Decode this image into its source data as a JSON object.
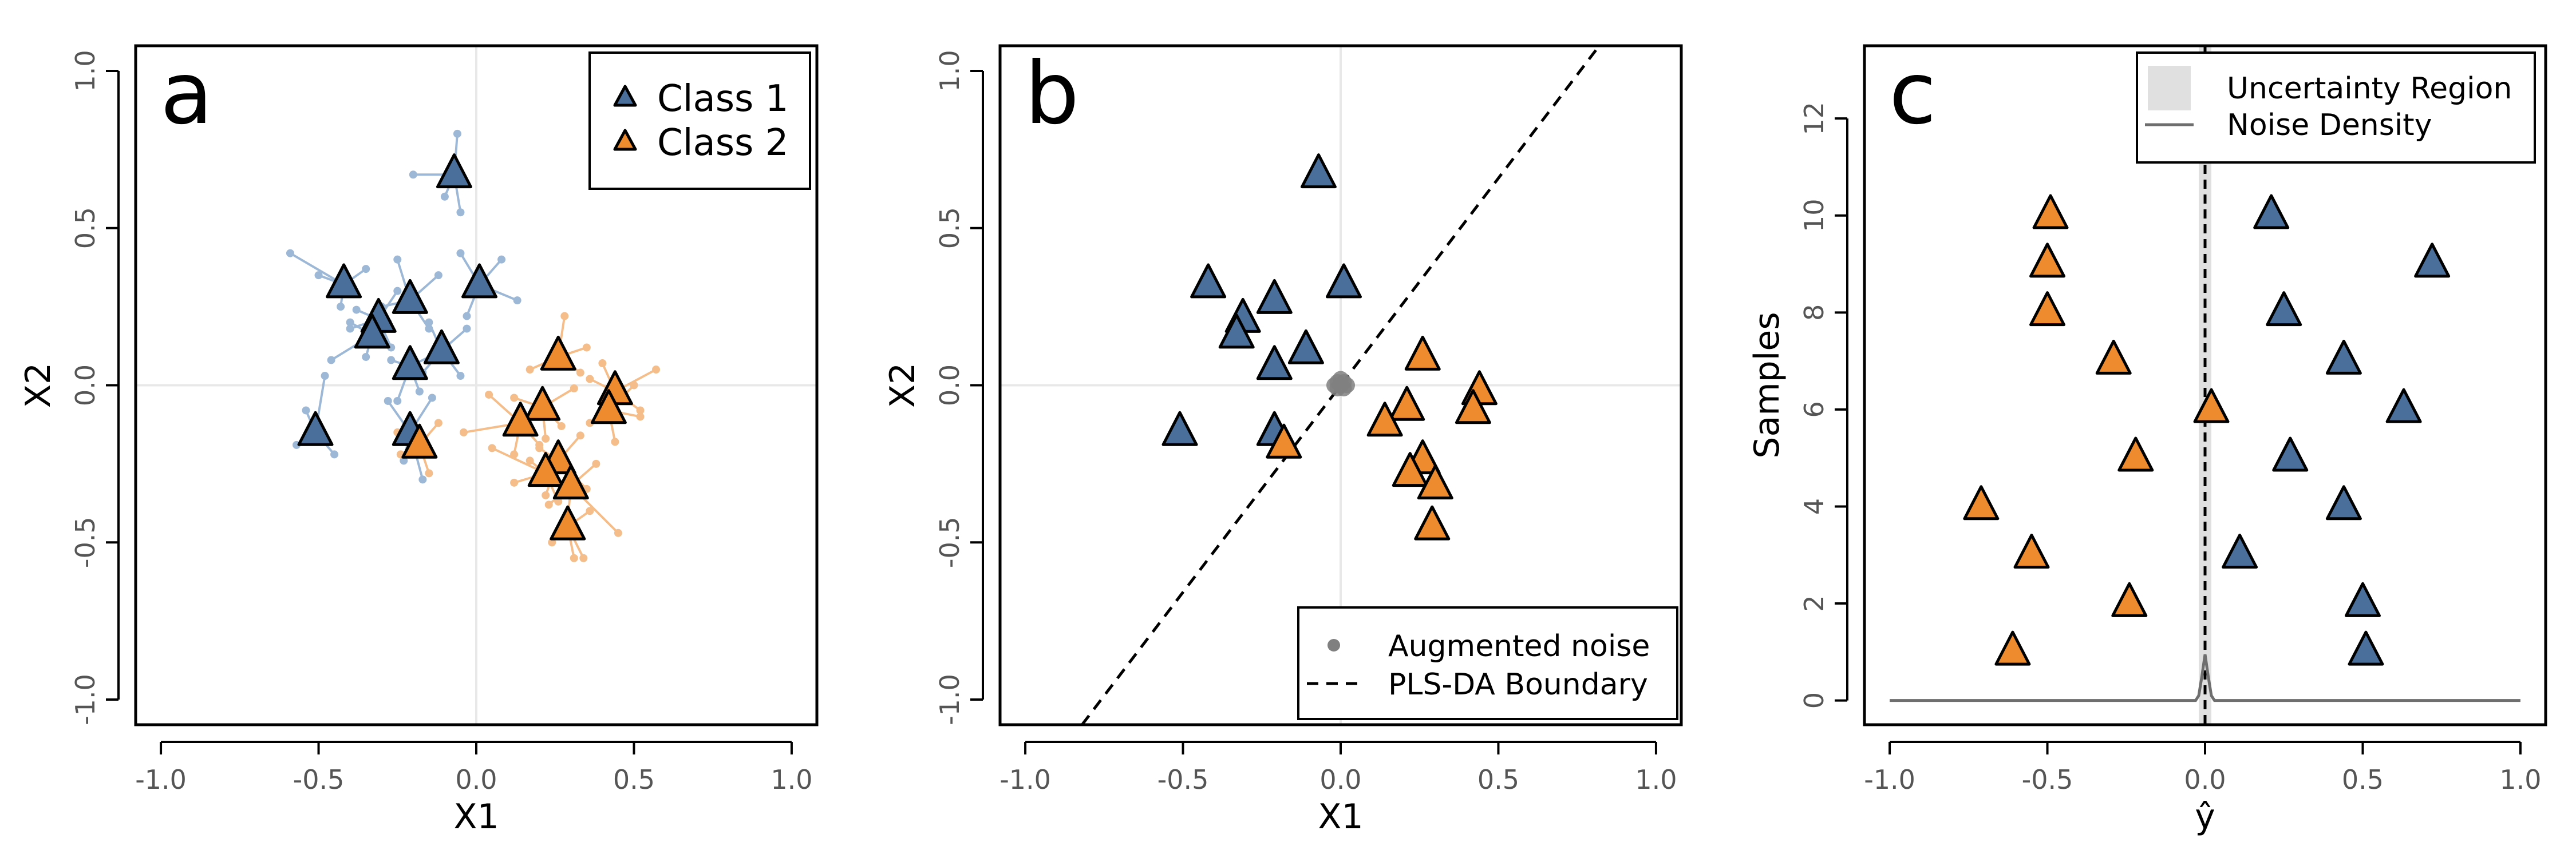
{
  "colors": {
    "class1": "#4a6f9b",
    "class1_light": "#9db8d6",
    "class2": "#ee8b2e",
    "class2_light": "#f4bd89",
    "noise": "#808080",
    "density": "#6e6e6e",
    "uncertainty": "#e0e0e0"
  },
  "chart_data": [
    {
      "type": "scatter",
      "panel_label": "a",
      "xlabel": "X1",
      "ylabel": "X2",
      "xlim": [
        -1.08,
        1.08
      ],
      "ylim": [
        -1.08,
        1.08
      ],
      "xticks": [
        "-1.0",
        "-0.5",
        "0.0",
        "0.5",
        "1.0"
      ],
      "yticks": [
        "-1.0",
        "-0.5",
        "0.0",
        "0.5",
        "1.0"
      ],
      "legend_position": "top-right",
      "series": [
        {
          "name": "Class 1",
          "x": [
            -0.07,
            0.01,
            -0.42,
            -0.21,
            -0.31,
            -0.33,
            -0.11,
            -0.21,
            -0.51,
            -0.21
          ],
          "y": [
            0.67,
            0.32,
            0.32,
            0.27,
            0.21,
            0.16,
            0.11,
            0.06,
            -0.15,
            -0.15
          ]
        },
        {
          "name": "Class 2",
          "x": [
            0.26,
            0.44,
            0.42,
            0.21,
            0.14,
            0.26,
            0.22,
            0.3,
            -0.18,
            0.29
          ],
          "y": [
            0.09,
            -0.02,
            -0.08,
            -0.07,
            -0.12,
            -0.24,
            -0.28,
            -0.32,
            -0.19,
            -0.45
          ]
        }
      ],
      "augmented_points": [
        {
          "class": 1,
          "center": [
            -0.07,
            0.67
          ],
          "points": [
            [
              -0.06,
              0.8
            ],
            [
              -0.1,
              0.6
            ],
            [
              -0.2,
              0.67
            ],
            [
              -0.05,
              0.55
            ]
          ]
        },
        {
          "class": 1,
          "center": [
            0.01,
            0.32
          ],
          "points": [
            [
              0.13,
              0.27
            ],
            [
              -0.05,
              0.42
            ],
            [
              0.08,
              0.4
            ],
            [
              -0.03,
              0.22
            ]
          ]
        },
        {
          "class": 1,
          "center": [
            -0.42,
            0.32
          ],
          "points": [
            [
              -0.59,
              0.42
            ],
            [
              -0.5,
              0.35
            ],
            [
              -0.35,
              0.37
            ],
            [
              -0.43,
              0.25
            ]
          ]
        },
        {
          "class": 1,
          "center": [
            -0.21,
            0.27
          ],
          "points": [
            [
              -0.12,
              0.35
            ],
            [
              -0.25,
              0.4
            ],
            [
              -0.3,
              0.25
            ],
            [
              -0.15,
              0.18
            ]
          ]
        },
        {
          "class": 1,
          "center": [
            -0.31,
            0.21
          ],
          "points": [
            [
              -0.25,
              0.3
            ],
            [
              -0.38,
              0.24
            ],
            [
              -0.4,
              0.18
            ],
            [
              -0.27,
              0.12
            ]
          ]
        },
        {
          "class": 1,
          "center": [
            -0.33,
            0.16
          ],
          "points": [
            [
              -0.46,
              0.08
            ],
            [
              -0.4,
              0.2
            ],
            [
              -0.28,
              0.2
            ],
            [
              -0.35,
              0.09
            ]
          ]
        },
        {
          "class": 1,
          "center": [
            -0.11,
            0.11
          ],
          "points": [
            [
              -0.03,
              0.18
            ],
            [
              -0.15,
              0.2
            ],
            [
              -0.17,
              0.04
            ],
            [
              -0.05,
              0.03
            ]
          ]
        },
        {
          "class": 1,
          "center": [
            -0.21,
            0.06
          ],
          "points": [
            [
              -0.25,
              -0.05
            ],
            [
              -0.27,
              0.08
            ],
            [
              -0.13,
              0.1
            ],
            [
              -0.18,
              -0.02
            ]
          ]
        },
        {
          "class": 1,
          "center": [
            -0.51,
            -0.15
          ],
          "points": [
            [
              -0.48,
              0.03
            ],
            [
              -0.57,
              -0.19
            ],
            [
              -0.45,
              -0.22
            ],
            [
              -0.54,
              -0.08
            ]
          ]
        },
        {
          "class": 1,
          "center": [
            -0.21,
            -0.15
          ],
          "points": [
            [
              -0.17,
              -0.3
            ],
            [
              -0.28,
              -0.05
            ],
            [
              -0.14,
              -0.04
            ],
            [
              -0.23,
              -0.24
            ]
          ]
        },
        {
          "class": 2,
          "center": [
            0.26,
            0.09
          ],
          "points": [
            [
              0.28,
              0.22
            ],
            [
              0.35,
              0.12
            ],
            [
              0.17,
              0.05
            ],
            [
              0.33,
              0.04
            ]
          ]
        },
        {
          "class": 2,
          "center": [
            0.44,
            -0.02
          ],
          "points": [
            [
              0.57,
              0.05
            ],
            [
              0.52,
              -0.08
            ],
            [
              0.36,
              0.02
            ],
            [
              0.4,
              0.07
            ]
          ]
        },
        {
          "class": 2,
          "center": [
            0.42,
            -0.08
          ],
          "points": [
            [
              0.52,
              -0.1
            ],
            [
              0.36,
              -0.12
            ],
            [
              0.5,
              0.0
            ],
            [
              0.44,
              -0.18
            ]
          ]
        },
        {
          "class": 2,
          "center": [
            0.21,
            -0.07
          ],
          "points": [
            [
              0.31,
              -0.01
            ],
            [
              0.22,
              -0.17
            ],
            [
              0.12,
              -0.04
            ],
            [
              0.27,
              -0.13
            ]
          ]
        },
        {
          "class": 2,
          "center": [
            0.14,
            -0.12
          ],
          "points": [
            [
              -0.04,
              -0.15
            ],
            [
              0.12,
              -0.22
            ],
            [
              0.04,
              -0.03
            ],
            [
              0.2,
              -0.19
            ]
          ]
        },
        {
          "class": 2,
          "center": [
            0.26,
            -0.24
          ],
          "points": [
            [
              0.33,
              -0.16
            ],
            [
              0.22,
              -0.35
            ],
            [
              0.35,
              -0.33
            ],
            [
              0.2,
              -0.2
            ]
          ]
        },
        {
          "class": 2,
          "center": [
            0.22,
            -0.28
          ],
          "points": [
            [
              0.05,
              -0.2
            ],
            [
              0.12,
              -0.31
            ],
            [
              0.26,
              -0.37
            ],
            [
              0.17,
              -0.24
            ]
          ]
        },
        {
          "class": 2,
          "center": [
            0.3,
            -0.32
          ],
          "points": [
            [
              0.45,
              -0.47
            ],
            [
              0.38,
              -0.25
            ],
            [
              0.29,
              -0.43
            ],
            [
              0.23,
              -0.38
            ]
          ]
        },
        {
          "class": 2,
          "center": [
            -0.18,
            -0.19
          ],
          "points": [
            [
              -0.24,
              -0.22
            ],
            [
              -0.15,
              -0.28
            ],
            [
              -0.12,
              -0.12
            ],
            [
              -0.25,
              -0.15
            ]
          ]
        },
        {
          "class": 2,
          "center": [
            0.29,
            -0.45
          ],
          "points": [
            [
              0.31,
              -0.55
            ],
            [
              0.24,
              -0.5
            ],
            [
              0.34,
              -0.55
            ],
            [
              0.36,
              -0.4
            ]
          ]
        }
      ]
    },
    {
      "type": "scatter",
      "panel_label": "b",
      "xlabel": "X1",
      "ylabel": "X2",
      "xlim": [
        -1.08,
        1.08
      ],
      "ylim": [
        -1.08,
        1.08
      ],
      "xticks": [
        "-1.0",
        "-0.5",
        "0.0",
        "0.5",
        "1.0"
      ],
      "yticks": [
        "-1.0",
        "-0.5",
        "0.0",
        "0.5",
        "1.0"
      ],
      "legend_position": "bottom-right",
      "legend": [
        "Augmented noise",
        "PLS-DA Boundary"
      ],
      "boundary": {
        "x": [
          -0.82,
          0.82
        ],
        "y": [
          -1.08,
          1.08
        ]
      },
      "noise_points": {
        "x": [
          0.0,
          0.01,
          -0.01,
          0.0,
          0.01,
          -0.01,
          0.02,
          -0.02
        ],
        "y": [
          0.0,
          0.01,
          -0.01,
          0.02,
          -0.01,
          0.01,
          0.0,
          0.0
        ]
      },
      "series": [
        {
          "name": "Class 1",
          "x": [
            -0.07,
            0.01,
            -0.42,
            -0.21,
            -0.31,
            -0.33,
            -0.11,
            -0.21,
            -0.51,
            -0.21
          ],
          "y": [
            0.67,
            0.32,
            0.32,
            0.27,
            0.21,
            0.16,
            0.11,
            0.06,
            -0.15,
            -0.15
          ]
        },
        {
          "name": "Class 2",
          "x": [
            0.26,
            0.44,
            0.42,
            0.21,
            0.14,
            0.26,
            0.22,
            0.3,
            -0.18,
            0.29
          ],
          "y": [
            0.09,
            -0.02,
            -0.08,
            -0.07,
            -0.12,
            -0.24,
            -0.28,
            -0.32,
            -0.19,
            -0.45
          ]
        }
      ]
    },
    {
      "type": "scatter",
      "panel_label": "c",
      "xlabel": "ŷ",
      "ylabel": "Samples",
      "xlim": [
        -1.08,
        1.08
      ],
      "ylim": [
        -0.5,
        13.5
      ],
      "xticks": [
        "-1.0",
        "-0.5",
        "0.0",
        "0.5",
        "1.0"
      ],
      "yticks": [
        "0",
        "2",
        "4",
        "6",
        "8",
        "10",
        "12"
      ],
      "legend_position": "top-right",
      "legend": [
        "Uncertainty Region",
        "Noise Density"
      ],
      "uncertainty_region": [
        -0.02,
        0.02
      ],
      "threshold_x": 0.0,
      "density": {
        "x": [
          -1.0,
          -0.03,
          -0.02,
          -0.01,
          0.0,
          0.01,
          0.02,
          0.03,
          1.0
        ],
        "y": [
          0.0,
          0.0,
          0.1,
          0.5,
          0.95,
          0.5,
          0.1,
          0.0,
          0.0
        ]
      },
      "series": [
        {
          "name": "Class 1",
          "x": [
            0.51,
            0.5,
            0.11,
            0.44,
            0.27,
            0.63,
            0.44,
            0.25,
            0.72,
            0.21
          ],
          "y": [
            1,
            2,
            3,
            4,
            5,
            6,
            7,
            8,
            9,
            10
          ]
        },
        {
          "name": "Class 2",
          "x": [
            -0.61,
            -0.24,
            -0.55,
            -0.71,
            -0.22,
            0.02,
            -0.29,
            -0.5,
            -0.5,
            -0.49
          ],
          "y": [
            1,
            2,
            3,
            4,
            5,
            6,
            7,
            8,
            9,
            10
          ]
        }
      ]
    }
  ]
}
